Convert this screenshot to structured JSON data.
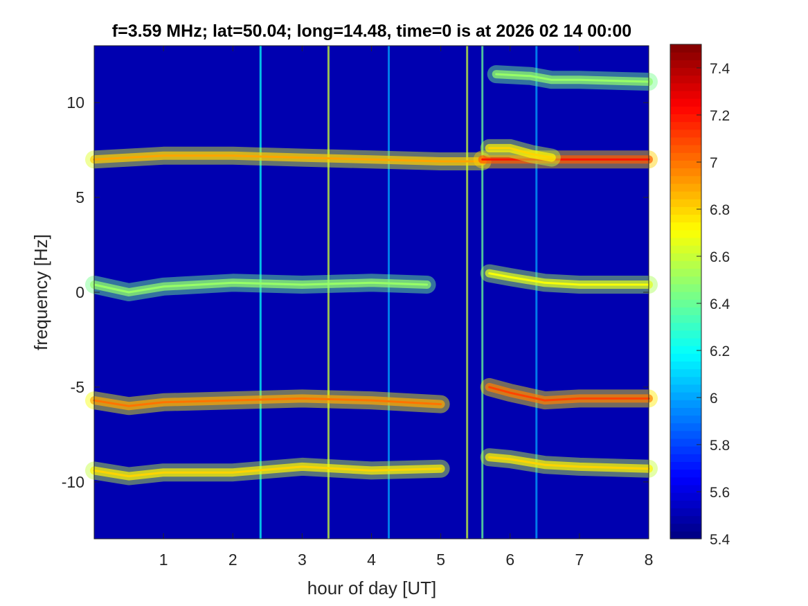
{
  "chart_data": {
    "type": "heatmap",
    "title": "f=3.59 MHz;  lat=50.04; long=14.48, time=0 is at 2026 02 14 00:00",
    "xlabel": "hour of day [UT]",
    "ylabel": "frequency [Hz]",
    "xlim": [
      0,
      8
    ],
    "ylim": [
      -13,
      13
    ],
    "x_ticks": [
      {
        "value": 1,
        "label": "1"
      },
      {
        "value": 2,
        "label": "2"
      },
      {
        "value": 3,
        "label": "3"
      },
      {
        "value": 4,
        "label": "4"
      },
      {
        "value": 5,
        "label": "5"
      },
      {
        "value": 6,
        "label": "6"
      },
      {
        "value": 7,
        "label": "7"
      },
      {
        "value": 8,
        "label": "8"
      }
    ],
    "y_ticks": [
      {
        "value": 10,
        "label": "10"
      },
      {
        "value": 5,
        "label": "5"
      },
      {
        "value": 0,
        "label": "0"
      },
      {
        "value": -5,
        "label": "-5"
      },
      {
        "value": -10,
        "label": "-10"
      }
    ],
    "colorbar": {
      "colormap": "jet",
      "range": [
        5.4,
        7.5
      ],
      "ticks": [
        {
          "value": 5.4,
          "label": "5.4"
        },
        {
          "value": 5.6,
          "label": "5.6"
        },
        {
          "value": 5.8,
          "label": "5.8"
        },
        {
          "value": 6.0,
          "label": "6"
        },
        {
          "value": 6.2,
          "label": "6.2"
        },
        {
          "value": 6.4,
          "label": "6.4"
        },
        {
          "value": 6.6,
          "label": "6.6"
        },
        {
          "value": 6.8,
          "label": "6.8"
        },
        {
          "value": 7.0,
          "label": "7"
        },
        {
          "value": 7.2,
          "label": "7.2"
        },
        {
          "value": 7.4,
          "label": "7.4"
        }
      ]
    },
    "background_level": 5.5,
    "traces": [
      {
        "level": 6.9,
        "points": [
          [
            0,
            7.0
          ],
          [
            1,
            7.2
          ],
          [
            2,
            7.2
          ],
          [
            3,
            7.1
          ],
          [
            4,
            7.0
          ],
          [
            5,
            6.9
          ],
          [
            5.6,
            6.9
          ]
        ]
      },
      {
        "level": 7.2,
        "points": [
          [
            5.6,
            7.0
          ],
          [
            6,
            7.0
          ],
          [
            7,
            7.0
          ],
          [
            8,
            7.0
          ]
        ]
      },
      {
        "level": 6.8,
        "points": [
          [
            5.7,
            7.6
          ],
          [
            6,
            7.6
          ],
          [
            6.3,
            7.3
          ],
          [
            6.6,
            7.1
          ]
        ]
      },
      {
        "level": 6.5,
        "points": [
          [
            5.8,
            11.5
          ],
          [
            6.3,
            11.4
          ],
          [
            6.6,
            11.2
          ],
          [
            7,
            11.2
          ],
          [
            8,
            11.1
          ]
        ]
      },
      {
        "level": 6.5,
        "points": [
          [
            0,
            0.4
          ],
          [
            0.5,
            0.0
          ],
          [
            1,
            0.3
          ],
          [
            2,
            0.5
          ],
          [
            3,
            0.4
          ],
          [
            4,
            0.5
          ],
          [
            4.8,
            0.4
          ]
        ]
      },
      {
        "level": 6.7,
        "points": [
          [
            5.7,
            1.0
          ],
          [
            6,
            0.8
          ],
          [
            6.5,
            0.5
          ],
          [
            7,
            0.4
          ],
          [
            8,
            0.4
          ]
        ]
      },
      {
        "level": 7.0,
        "points": [
          [
            0,
            -5.7
          ],
          [
            0.5,
            -6.0
          ],
          [
            1,
            -5.8
          ],
          [
            2,
            -5.7
          ],
          [
            3,
            -5.6
          ],
          [
            4,
            -5.7
          ],
          [
            5,
            -5.9
          ]
        ]
      },
      {
        "level": 7.1,
        "points": [
          [
            5.7,
            -5.0
          ],
          [
            6,
            -5.3
          ],
          [
            6.5,
            -5.7
          ],
          [
            7,
            -5.6
          ],
          [
            8,
            -5.6
          ]
        ]
      },
      {
        "level": 6.8,
        "points": [
          [
            0,
            -9.4
          ],
          [
            0.5,
            -9.7
          ],
          [
            1,
            -9.5
          ],
          [
            2,
            -9.5
          ],
          [
            3,
            -9.2
          ],
          [
            4,
            -9.4
          ],
          [
            5,
            -9.3
          ]
        ]
      },
      {
        "level": 6.8,
        "points": [
          [
            5.7,
            -8.7
          ],
          [
            6,
            -8.8
          ],
          [
            6.5,
            -9.1
          ],
          [
            7,
            -9.2
          ],
          [
            8,
            -9.3
          ]
        ]
      }
    ],
    "vertical_streaks": [
      {
        "x": 2.4,
        "level": 6.2
      },
      {
        "x": 3.38,
        "level": 6.6
      },
      {
        "x": 4.25,
        "level": 6.0
      },
      {
        "x": 5.38,
        "level": 6.6
      },
      {
        "x": 5.6,
        "level": 6.4
      },
      {
        "x": 6.38,
        "level": 6.0
      }
    ]
  }
}
